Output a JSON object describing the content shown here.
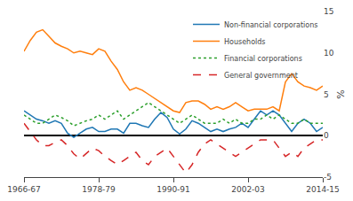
{
  "chart_data": {
    "type": "line",
    "ylabel": "%",
    "x": [
      1967,
      1968,
      1969,
      1970,
      1971,
      1972,
      1973,
      1974,
      1975,
      1976,
      1977,
      1978,
      1979,
      1980,
      1981,
      1982,
      1983,
      1984,
      1985,
      1986,
      1987,
      1988,
      1989,
      1990,
      1991,
      1992,
      1993,
      1994,
      1995,
      1996,
      1997,
      1998,
      1999,
      2000,
      2001,
      2002,
      2003,
      2004,
      2005,
      2006,
      2007,
      2008,
      2009,
      2010,
      2011,
      2012,
      2013,
      2014,
      2015
    ],
    "xlim": [
      1967,
      2015
    ],
    "xticks": [
      {
        "value": 1967,
        "label": "1966-67"
      },
      {
        "value": 1979,
        "label": "1978-79"
      },
      {
        "value": 1991,
        "label": "1990-91"
      },
      {
        "value": 2003,
        "label": "2002-03"
      },
      {
        "value": 2015,
        "label": "2014-15"
      }
    ],
    "ylim": [
      -5,
      15
    ],
    "yticks": [
      -5,
      0,
      5,
      10,
      15
    ],
    "grid": false,
    "legend": "upper right",
    "series": [
      {
        "name": "Non-financial corporations",
        "line_style": "solid",
        "values": [
          3.0,
          2.5,
          2.0,
          1.8,
          1.5,
          1.8,
          1.5,
          0.3,
          -0.2,
          0.3,
          0.8,
          1.0,
          0.5,
          0.5,
          0.8,
          0.8,
          0.3,
          1.5,
          1.5,
          1.2,
          1.0,
          2.0,
          2.8,
          2.2,
          0.8,
          0.2,
          0.8,
          1.8,
          1.5,
          1.0,
          0.5,
          0.8,
          0.5,
          0.8,
          1.0,
          1.5,
          1.0,
          2.0,
          3.0,
          2.5,
          3.0,
          2.5,
          1.5,
          0.5,
          1.5,
          2.0,
          1.5,
          0.5,
          1.0
        ]
      },
      {
        "name": "Households",
        "line_style": "solid",
        "values": [
          10.2,
          11.5,
          12.5,
          12.8,
          12.0,
          11.2,
          10.8,
          10.5,
          10.0,
          10.2,
          10.0,
          9.8,
          10.5,
          10.2,
          9.0,
          8.0,
          6.5,
          5.5,
          5.8,
          5.5,
          5.0,
          4.5,
          4.0,
          3.5,
          3.0,
          2.8,
          4.0,
          4.2,
          4.2,
          3.8,
          3.2,
          3.5,
          3.2,
          3.5,
          4.0,
          3.5,
          3.0,
          3.2,
          3.2,
          3.2,
          3.5,
          3.0,
          6.5,
          7.5,
          6.5,
          6.0,
          5.8,
          5.5,
          6.0
        ]
      },
      {
        "name": "Financial corporations",
        "line_style": "dot",
        "values": [
          2.5,
          2.0,
          1.5,
          1.5,
          2.0,
          2.5,
          2.2,
          1.8,
          1.2,
          1.5,
          1.8,
          2.0,
          2.5,
          2.0,
          2.5,
          3.0,
          2.0,
          2.5,
          3.0,
          3.5,
          4.0,
          3.5,
          3.0,
          2.5,
          2.0,
          1.5,
          2.0,
          2.5,
          2.0,
          1.5,
          1.5,
          1.5,
          2.0,
          1.5,
          2.0,
          1.5,
          1.5,
          2.0,
          2.0,
          2.5,
          2.0,
          2.5,
          2.0,
          1.5,
          1.5,
          2.0,
          1.5,
          1.5,
          1.5
        ]
      },
      {
        "name": "General government",
        "line_style": "dash",
        "values": [
          1.5,
          0.5,
          -0.5,
          -1.2,
          -1.2,
          -0.8,
          -0.5,
          -1.2,
          -2.2,
          -2.8,
          -2.2,
          -1.5,
          -1.8,
          -2.5,
          -3.0,
          -3.5,
          -3.0,
          -2.5,
          -2.0,
          -3.0,
          -3.5,
          -2.5,
          -2.0,
          -1.5,
          -2.5,
          -3.5,
          -4.5,
          -3.5,
          -2.0,
          -1.0,
          -0.5,
          -1.0,
          -1.5,
          -2.0,
          -2.5,
          -2.0,
          -1.5,
          -1.0,
          -0.5,
          -0.5,
          -0.5,
          -1.5,
          -2.5,
          -2.0,
          -2.5,
          -1.5,
          -1.0,
          -0.5,
          -0.5
        ]
      }
    ]
  }
}
